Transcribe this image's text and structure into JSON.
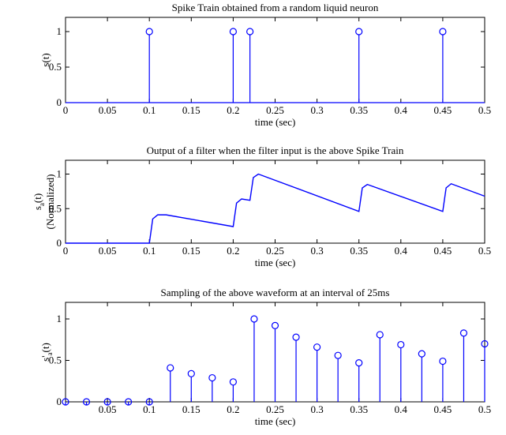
{
  "chart_data": [
    {
      "type": "stem",
      "title": "Spike Train obtained from a random liquid neuron",
      "xlabel": "time (sec)",
      "ylabel": "s(t)",
      "xlim": [
        0,
        0.5
      ],
      "ylim": [
        0,
        1.2
      ],
      "xticks": [
        "0",
        "0.05",
        "0.1",
        "0.15",
        "0.2",
        "0.25",
        "0.3",
        "0.35",
        "0.4",
        "0.45",
        "0.5"
      ],
      "yticks": [
        "0",
        "0.5",
        "1"
      ],
      "color": "#0000ff",
      "x": [
        0.1,
        0.2,
        0.22,
        0.35,
        0.45
      ],
      "y": [
        1,
        1,
        1,
        1,
        1
      ]
    },
    {
      "type": "line",
      "title": "Output of a filter when the filter input is the above Spike Train",
      "xlabel": "time (sec)",
      "ylabel": "s",
      "ylabel_sub": "a",
      "ylabel_tail": "(t)",
      "ylabel2": "(Normalized)",
      "xlim": [
        0,
        0.5
      ],
      "ylim": [
        0,
        1.2
      ],
      "xticks": [
        "0",
        "0.05",
        "0.1",
        "0.15",
        "0.2",
        "0.25",
        "0.3",
        "0.35",
        "0.4",
        "0.45",
        "0.5"
      ],
      "yticks": [
        "0",
        "0.5",
        "1"
      ],
      "color": "#0000ff",
      "x": [
        0,
        0.1,
        0.104,
        0.11,
        0.12,
        0.2,
        0.204,
        0.21,
        0.22,
        0.224,
        0.23,
        0.35,
        0.354,
        0.36,
        0.45,
        0.454,
        0.46,
        0.5
      ],
      "y": [
        0,
        0,
        0.35,
        0.41,
        0.41,
        0.24,
        0.58,
        0.64,
        0.62,
        0.95,
        1.0,
        0.46,
        0.8,
        0.85,
        0.46,
        0.8,
        0.86,
        0.68
      ]
    },
    {
      "type": "stem",
      "title": "Sampling of the above waveform at an interval of 25ms",
      "xlabel": "time (sec)",
      "ylabel": "s'",
      "ylabel_sub": "a",
      "ylabel_tail": "(t)",
      "xlim": [
        0,
        0.5
      ],
      "ylim": [
        0,
        1.2
      ],
      "xticks": [
        "0.05",
        "0.1",
        "0.15",
        "0.2",
        "0.25",
        "0.3",
        "0.35",
        "0.4",
        "0.45",
        "0.5"
      ],
      "yticks": [
        "0",
        "0.5",
        "1"
      ],
      "color": "#0000ff",
      "x": [
        0,
        0.025,
        0.05,
        0.075,
        0.1,
        0.125,
        0.15,
        0.175,
        0.2,
        0.225,
        0.25,
        0.275,
        0.3,
        0.325,
        0.35,
        0.375,
        0.4,
        0.425,
        0.45,
        0.475,
        0.5
      ],
      "y": [
        0,
        0,
        0,
        0,
        0,
        0.41,
        0.34,
        0.29,
        0.24,
        1.0,
        0.92,
        0.78,
        0.66,
        0.56,
        0.47,
        0.81,
        0.69,
        0.58,
        0.49,
        0.83,
        0.7
      ]
    }
  ]
}
